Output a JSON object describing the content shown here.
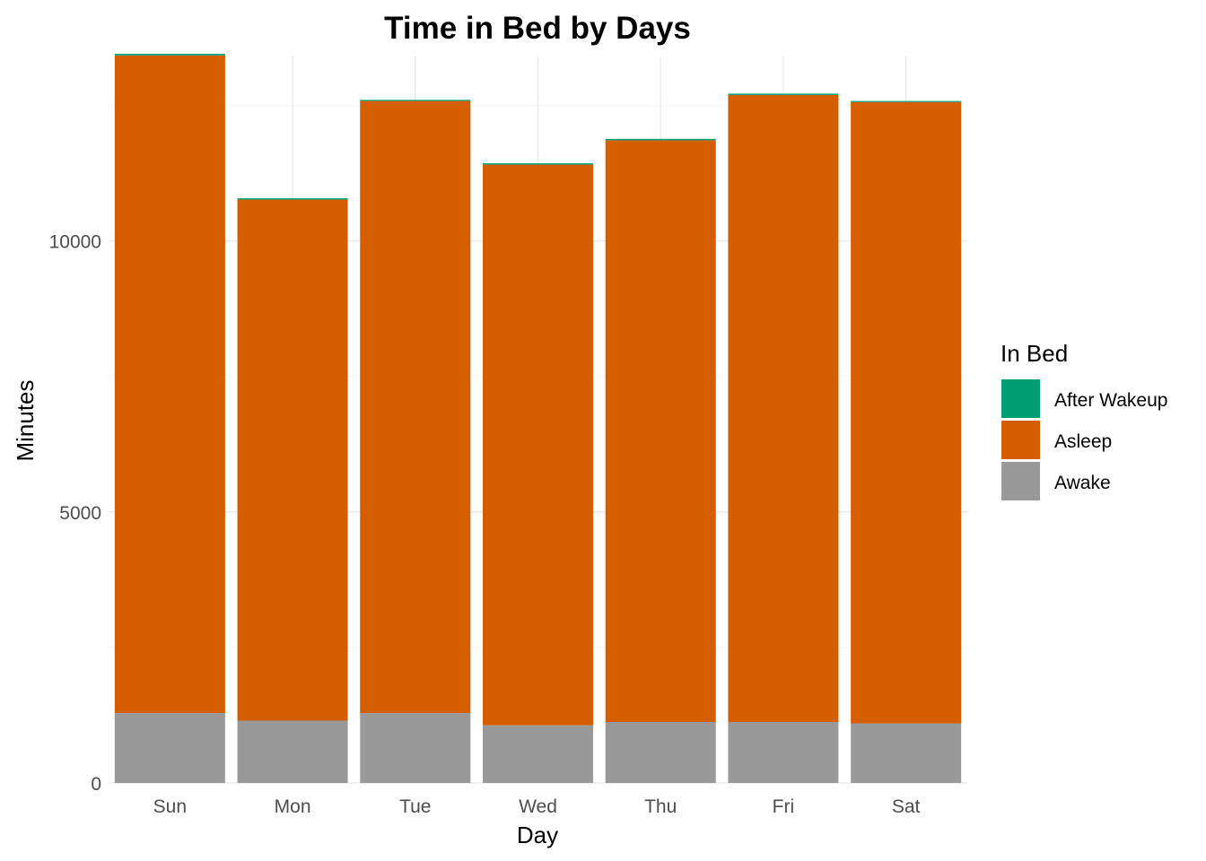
{
  "chart_data": {
    "type": "bar",
    "stacked": true,
    "title": "Time in Bed by Days",
    "xlabel": "Day",
    "ylabel": "Minutes",
    "categories": [
      "Sun",
      "Mon",
      "Tue",
      "Wed",
      "Thu",
      "Fri",
      "Sat"
    ],
    "series": [
      {
        "name": "Awake",
        "color": "#999999",
        "values": [
          1290,
          1150,
          1290,
          1065,
          1125,
          1125,
          1100
        ]
      },
      {
        "name": "Asleep",
        "color": "#D55E00",
        "values": [
          12130,
          9610,
          11290,
          10340,
          10730,
          11565,
          11460
        ]
      },
      {
        "name": "After Wakeup",
        "color": "#009E73",
        "values": [
          30,
          25,
          20,
          25,
          25,
          25,
          20
        ]
      }
    ],
    "ylim": [
      0,
      13400
    ],
    "yticks": [
      0,
      5000,
      10000
    ],
    "grid": true,
    "legend": {
      "title": "In Bed",
      "position": "right",
      "entries": [
        "After Wakeup",
        "Asleep",
        "Awake"
      ]
    }
  }
}
